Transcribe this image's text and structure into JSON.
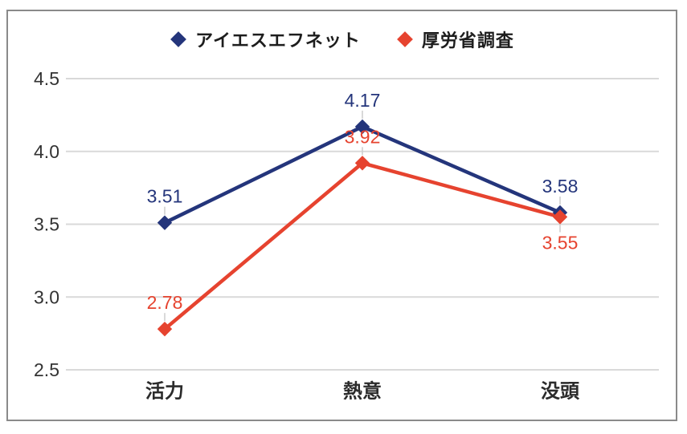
{
  "frame": {
    "border_color": "#8a8a8a",
    "background": "#ffffff"
  },
  "legend": {
    "position": "top-center",
    "items": [
      {
        "label": "アイエスエフネット",
        "marker": "diamond-icon",
        "color": "#24357b"
      },
      {
        "label": "厚労省調査",
        "marker": "diamond-icon",
        "color": "#e6432f"
      }
    ]
  },
  "chart_data": {
    "type": "line",
    "title": "",
    "xlabel": "",
    "ylabel": "",
    "categories": [
      "活力",
      "熱意",
      "没頭"
    ],
    "series": [
      {
        "name": "アイエスエフネット",
        "color": "#24357b",
        "values": [
          3.51,
          4.17,
          3.58
        ],
        "data_labels": [
          "3.51",
          "4.17",
          "3.58"
        ],
        "label_positions": [
          "above",
          "above",
          "above"
        ]
      },
      {
        "name": "厚労省調査",
        "color": "#e6432f",
        "values": [
          2.78,
          3.92,
          3.55
        ],
        "data_labels": [
          "2.78",
          "3.92",
          "3.55"
        ],
        "label_positions": [
          "above",
          "above",
          "below"
        ]
      }
    ],
    "ylim": [
      2.5,
      4.5
    ],
    "yticks": [
      "2.5",
      "3.0",
      "3.5",
      "4.0",
      "4.5"
    ],
    "grid": true,
    "gridline_color": "#d9d9d9",
    "leader_line_color": "#cccccc",
    "axis_text_color": "#333333",
    "marker": "diamond",
    "legend_position": "top"
  }
}
